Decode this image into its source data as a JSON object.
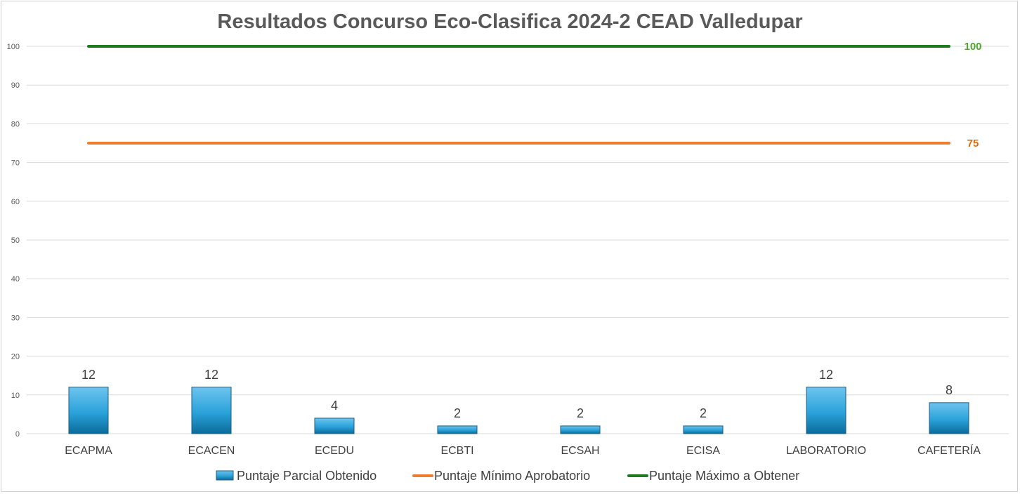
{
  "colors": {
    "bar_top": "#6ec4ee",
    "bar_bottom": "#0b6b9a",
    "bar_stroke": "#1c5d82",
    "min_line": "#ed7d31",
    "max_line": "#1f7a1f",
    "min_label": "#e36c09",
    "max_label": "#4ea72e",
    "grid": "#d9d9d9"
  },
  "chart_data": {
    "type": "bar",
    "title": "Resultados Concurso Eco-Clasifica 2024-2 CEAD Valledupar",
    "xlabel": "",
    "ylabel": "",
    "ylim": [
      0,
      100
    ],
    "yticks": [
      0,
      10,
      20,
      30,
      40,
      50,
      60,
      70,
      80,
      90,
      100
    ],
    "grid": true,
    "legend_position": "bottom",
    "categories": [
      "ECAPMA",
      "ECACEN",
      "ECEDU",
      "ECBTI",
      "ECSAH",
      "ECISA",
      "LABORATORIO",
      "CAFETERÍA"
    ],
    "series": [
      {
        "name": "Puntaje Parcial Obtenido",
        "kind": "bar",
        "values": [
          12,
          12,
          4,
          2,
          2,
          2,
          12,
          8
        ]
      },
      {
        "name": "Puntaje Mínimo Aprobatorio",
        "kind": "line",
        "values": [
          75,
          75,
          75,
          75,
          75,
          75,
          75,
          75
        ],
        "end_label": "75"
      },
      {
        "name": "Puntaje Máximo a Obtener",
        "kind": "line",
        "values": [
          100,
          100,
          100,
          100,
          100,
          100,
          100,
          100
        ],
        "end_label": "100"
      }
    ]
  }
}
